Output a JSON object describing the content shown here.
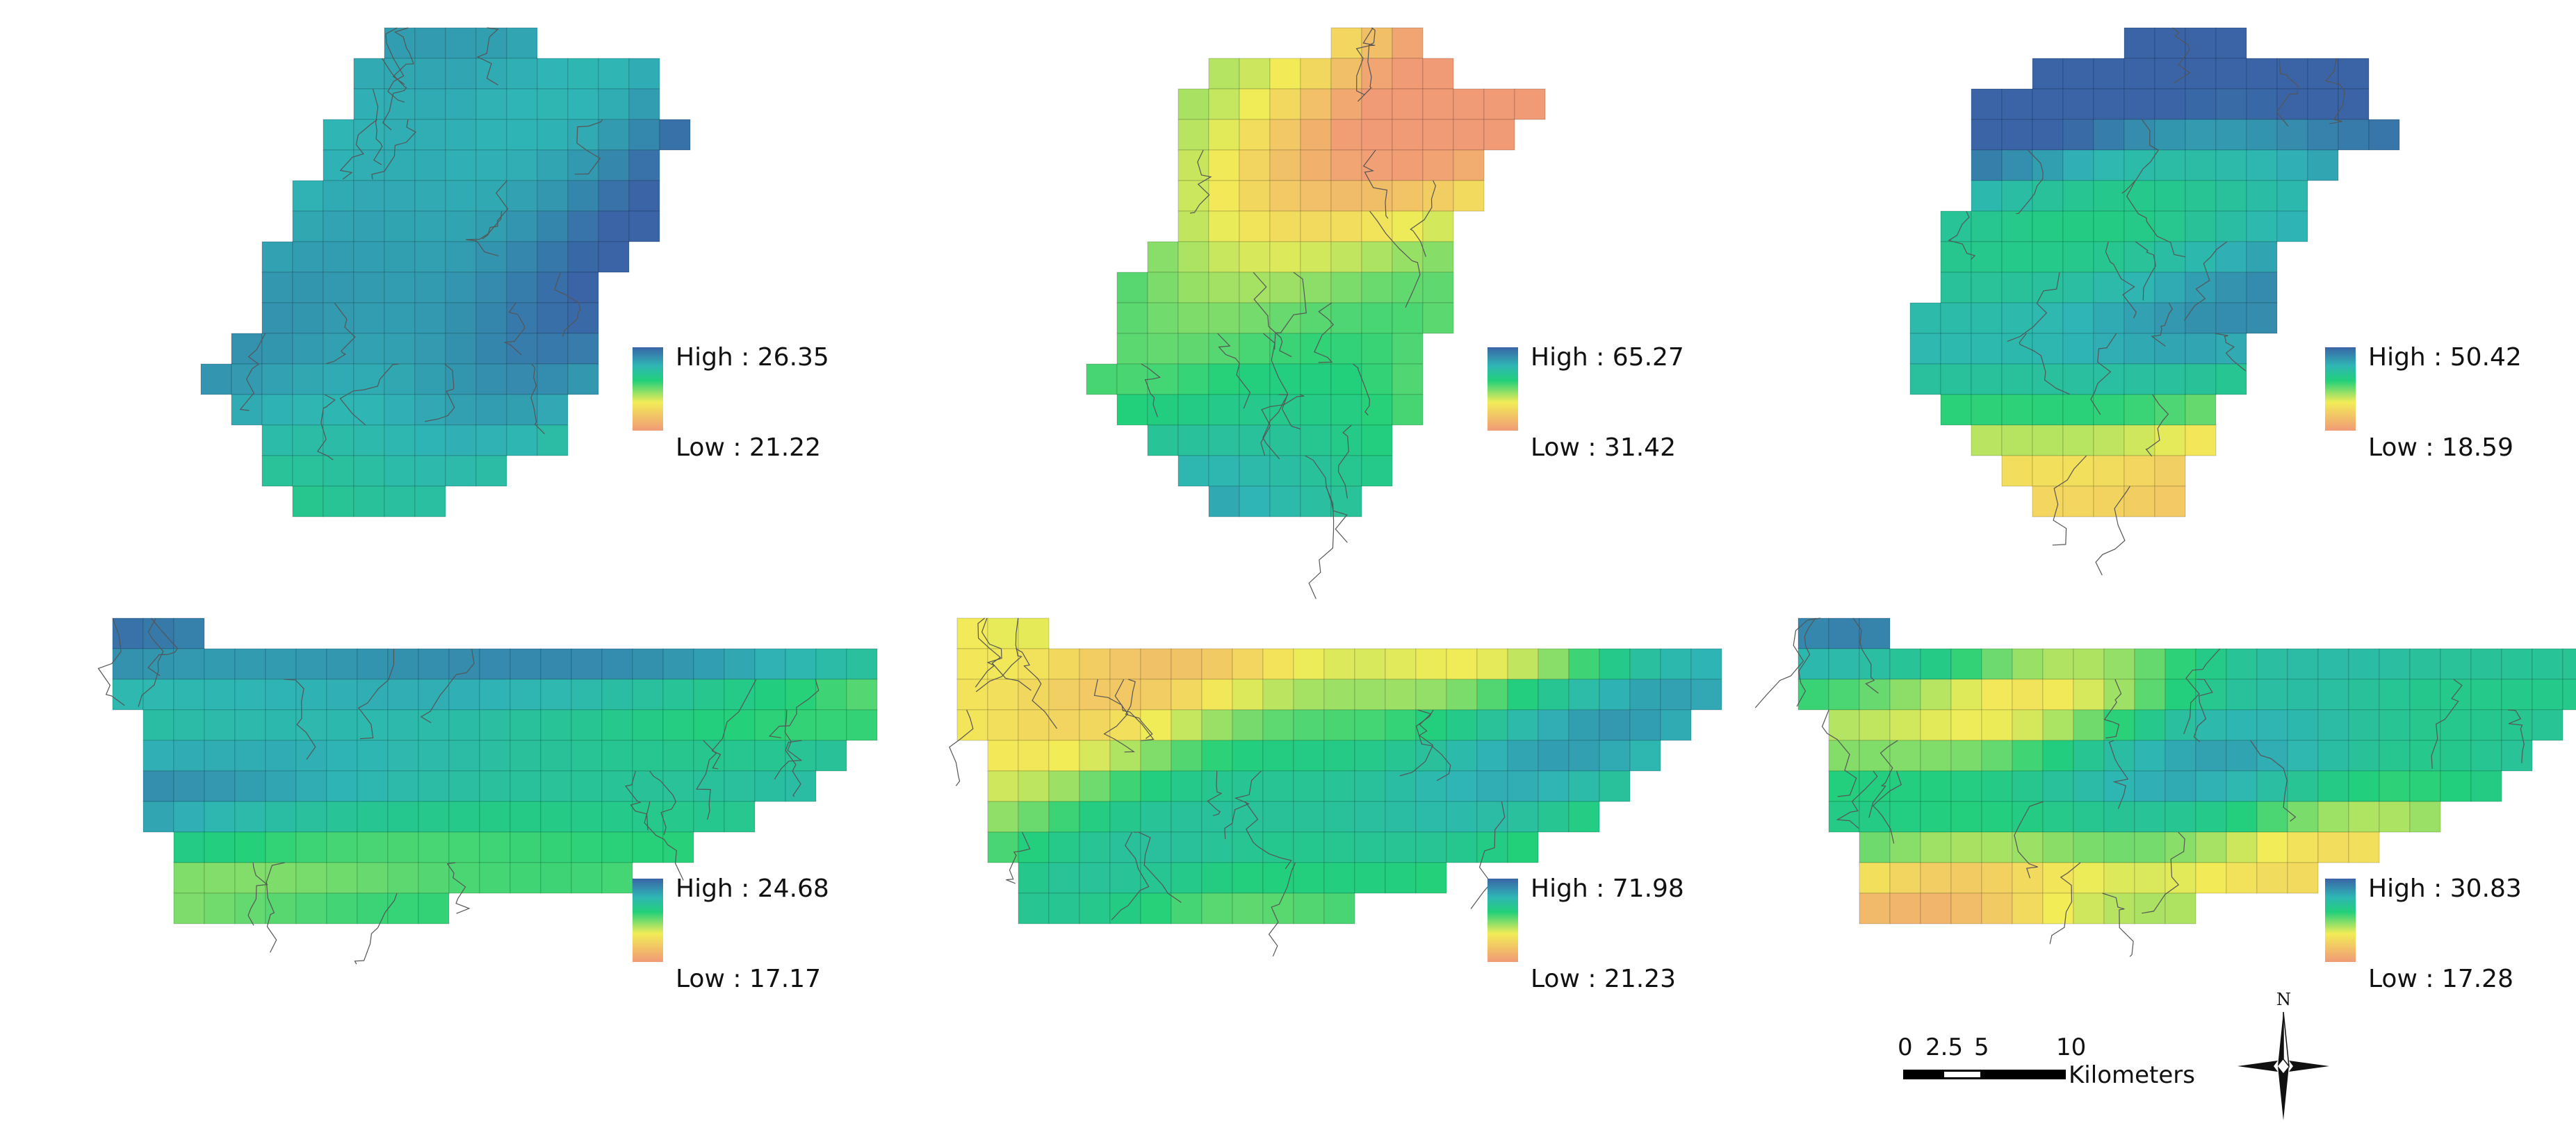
{
  "panels": [
    {
      "id": "top-left",
      "legend_high": "High : 26.35",
      "legend_low": "Low : 21.22"
    },
    {
      "id": "top-middle",
      "legend_high": "High : 65.27",
      "legend_low": "Low : 31.42"
    },
    {
      "id": "top-right",
      "legend_high": "High : 50.42",
      "legend_low": "Low : 18.59"
    },
    {
      "id": "bottom-left",
      "legend_high": "High : 24.68",
      "legend_low": "Low : 17.17"
    },
    {
      "id": "bottom-middle",
      "legend_high": "High : 71.98",
      "legend_low": "Low : 21.23"
    },
    {
      "id": "bottom-right",
      "legend_high": "High : 30.83",
      "legend_low": "Low : 17.28"
    }
  ],
  "color_ramp": [
    "#3a64a6",
    "#2fb5b5",
    "#22d07a",
    "#f2ec57",
    "#f19a76"
  ],
  "scale_bar": {
    "ticks": [
      "0",
      "2.5",
      "5",
      "10"
    ],
    "unit": "Kilometers"
  },
  "north_arrow": {
    "label": "N"
  }
}
